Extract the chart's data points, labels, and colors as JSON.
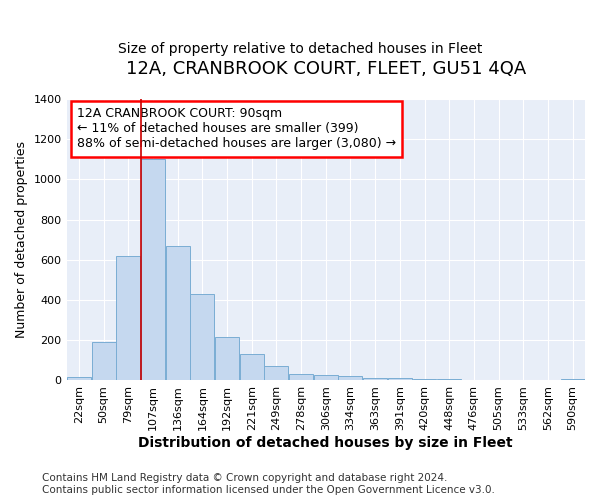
{
  "title": "12A, CRANBROOK COURT, FLEET, GU51 4QA",
  "subtitle": "Size of property relative to detached houses in Fleet",
  "xlabel": "Distribution of detached houses by size in Fleet",
  "ylabel": "Number of detached properties",
  "footer_line1": "Contains HM Land Registry data © Crown copyright and database right 2024.",
  "footer_line2": "Contains public sector information licensed under the Open Government Licence v3.0.",
  "annotation_line1": "12A CRANBROOK COURT: 90sqm",
  "annotation_line2": "← 11% of detached houses are smaller (399)",
  "annotation_line3": "88% of semi-detached houses are larger (3,080) →",
  "bar_color": "#c5d8ef",
  "bar_edge_color": "#7aadd4",
  "vline_color": "#cc0000",
  "vline_x_idx": 2.5,
  "categories": [
    "22sqm",
    "50sqm",
    "79sqm",
    "107sqm",
    "136sqm",
    "164sqm",
    "192sqm",
    "221sqm",
    "249sqm",
    "278sqm",
    "306sqm",
    "334sqm",
    "363sqm",
    "391sqm",
    "420sqm",
    "448sqm",
    "476sqm",
    "505sqm",
    "533sqm",
    "562sqm",
    "590sqm"
  ],
  "values": [
    15,
    190,
    620,
    1100,
    670,
    430,
    215,
    130,
    70,
    30,
    25,
    20,
    12,
    10,
    7,
    5,
    3,
    2,
    2,
    1,
    5
  ],
  "ylim": [
    0,
    1400
  ],
  "yticks": [
    0,
    200,
    400,
    600,
    800,
    1000,
    1200,
    1400
  ],
  "background_color": "#ffffff",
  "plot_bg_color": "#e8eef8",
  "grid_color": "#ffffff",
  "title_fontsize": 13,
  "subtitle_fontsize": 10,
  "xlabel_fontsize": 10,
  "ylabel_fontsize": 9,
  "tick_fontsize": 8,
  "annotation_fontsize": 9,
  "footer_fontsize": 7.5
}
